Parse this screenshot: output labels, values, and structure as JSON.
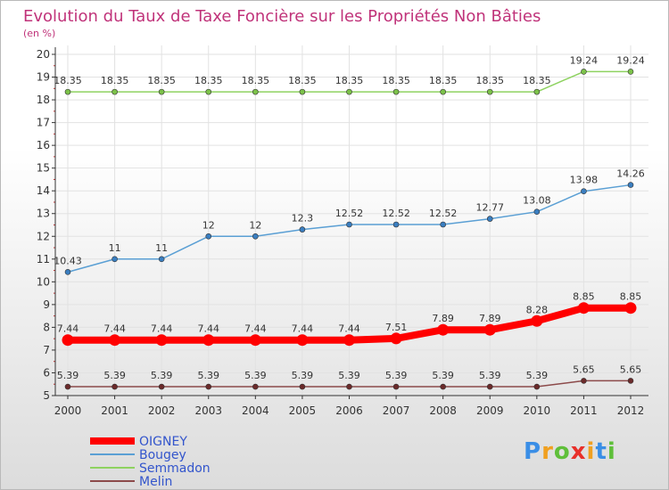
{
  "chart_data": {
    "type": "line",
    "title": "Evolution du Taux de Taxe Foncière sur les Propriétés Non Bâties",
    "subtitle": "(en %)",
    "x": [
      "2000",
      "2001",
      "2002",
      "2003",
      "2004",
      "2005",
      "2006",
      "2007",
      "2008",
      "2009",
      "2010",
      "2011",
      "2012"
    ],
    "ylim": [
      5,
      20
    ],
    "yticks": [
      "5",
      "6",
      "7",
      "8",
      "9",
      "10",
      "11",
      "12",
      "13",
      "14",
      "15",
      "16",
      "17",
      "18",
      "19",
      "20"
    ],
    "grid": true,
    "legend_position": "bottom-left",
    "series": [
      {
        "name": "OIGNEY",
        "color": "#ff0000",
        "emphasis": true,
        "values": [
          7.44,
          7.44,
          7.44,
          7.44,
          7.44,
          7.44,
          7.44,
          7.51,
          7.89,
          7.89,
          8.28,
          8.85,
          8.85
        ],
        "labels": [
          "7.44",
          "7.44",
          "7.44",
          "7.44",
          "7.44",
          "7.44",
          "7.44",
          "7.51",
          "7.89",
          "7.89",
          "8.28",
          "8.85",
          "8.85"
        ]
      },
      {
        "name": "Bougey",
        "color": "#5a9fd4",
        "marker_color": "#3a7ec0",
        "values": [
          10.43,
          11,
          11,
          12,
          12,
          12.3,
          12.52,
          12.52,
          12.52,
          12.77,
          13.08,
          13.98,
          14.26
        ],
        "labels": [
          "10.43",
          "11",
          "11",
          "12",
          "12",
          "12.3",
          "12.52",
          "12.52",
          "12.52",
          "12.77",
          "13.08",
          "13.98",
          "14.26"
        ]
      },
      {
        "name": "Semmadon",
        "color": "#8ed260",
        "marker_color": "#7cc24a",
        "values": [
          18.35,
          18.35,
          18.35,
          18.35,
          18.35,
          18.35,
          18.35,
          18.35,
          18.35,
          18.35,
          18.35,
          19.24,
          19.24
        ],
        "labels": [
          "18.35",
          "18.35",
          "18.35",
          "18.35",
          "18.35",
          "18.35",
          "18.35",
          "18.35",
          "18.35",
          "18.35",
          "18.35",
          "19.24",
          "19.24"
        ]
      },
      {
        "name": "Melin",
        "color": "#8c4a4a",
        "marker_color": "#6b2a2a",
        "values": [
          5.39,
          5.39,
          5.39,
          5.39,
          5.39,
          5.39,
          5.39,
          5.39,
          5.39,
          5.39,
          5.39,
          5.65,
          5.65
        ],
        "labels": [
          "5.39",
          "5.39",
          "5.39",
          "5.39",
          "5.39",
          "5.39",
          "5.39",
          "5.39",
          "5.39",
          "5.39",
          "5.39",
          "5.65",
          "5.65"
        ]
      }
    ]
  },
  "logo": {
    "text": "Proxiti",
    "letters": [
      "P",
      "r",
      "o",
      "x",
      "i",
      "t",
      "i"
    ],
    "letter_colors": [
      "#3a8ee6",
      "#f0a020",
      "#5fbf3a",
      "#e8302a",
      "#f0a020",
      "#3a8ee6",
      "#5fbf3a"
    ]
  },
  "colors": {
    "title": "#c0337a",
    "legend_text": "#3355cc",
    "axis": "#333333"
  }
}
